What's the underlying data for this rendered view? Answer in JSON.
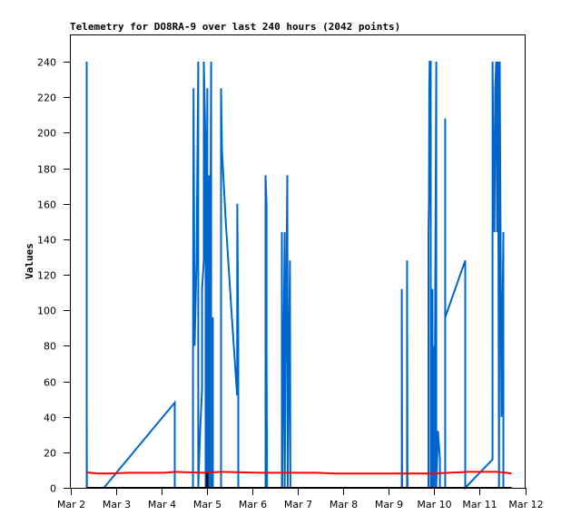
{
  "chart_data": {
    "type": "line",
    "title": "Telemetry for DO8RA-9 over last 240 hours (2042 points)",
    "xlabel": "",
    "ylabel": "Values",
    "x_unit": "hours since Mar 2 00:00",
    "xlim": [
      0,
      240
    ],
    "ylim": [
      0,
      256
    ],
    "yticks": [
      0,
      20,
      40,
      60,
      80,
      100,
      120,
      140,
      160,
      180,
      200,
      220,
      240
    ],
    "xticks": [
      {
        "h": 0,
        "label": "Mar 2"
      },
      {
        "h": 24,
        "label": "Mar 3"
      },
      {
        "h": 48,
        "label": "Mar 4"
      },
      {
        "h": 72,
        "label": "Mar 5"
      },
      {
        "h": 96,
        "label": "Mar 6"
      },
      {
        "h": 120,
        "label": "Mar 7"
      },
      {
        "h": 144,
        "label": "Mar 8"
      },
      {
        "h": 168,
        "label": "Mar 9"
      },
      {
        "h": 192,
        "label": "Mar 10"
      },
      {
        "h": 216,
        "label": "Mar 11"
      },
      {
        "h": 240,
        "label": "Mar 12"
      }
    ],
    "grid": false,
    "series": [
      {
        "name": "blue",
        "color": "#0066cc",
        "points": [
          [
            8.6,
            0
          ],
          [
            8.6,
            240
          ],
          [
            8.6,
            48
          ],
          [
            8.7,
            0
          ],
          [
            17.7,
            0
          ],
          [
            55.1,
            48
          ],
          [
            55.1,
            0
          ],
          [
            64.7,
            0
          ],
          [
            64.7,
            64
          ],
          [
            65,
            225
          ],
          [
            65.6,
            80
          ],
          [
            66.6,
            128
          ],
          [
            67.5,
            240
          ],
          [
            67.5,
            0
          ],
          [
            68.5,
            32
          ],
          [
            69.5,
            56
          ],
          [
            69.5,
            112
          ],
          [
            70.4,
            128
          ],
          [
            70.4,
            240
          ],
          [
            71.4,
            192
          ],
          [
            71.4,
            0
          ],
          [
            72.3,
            225
          ],
          [
            72.3,
            0
          ],
          [
            73.3,
            176
          ],
          [
            73.3,
            0
          ],
          [
            74.3,
            240
          ],
          [
            74.3,
            0
          ],
          [
            75.2,
            96
          ],
          [
            75.2,
            0
          ],
          [
            79.5,
            0
          ],
          [
            79.5,
            225
          ],
          [
            80,
            190
          ],
          [
            82,
            150
          ],
          [
            85,
            100
          ],
          [
            88,
            52
          ],
          [
            88.1,
            160
          ],
          [
            88.6,
            80
          ],
          [
            88.6,
            0
          ],
          [
            103,
            0
          ],
          [
            103,
            176
          ],
          [
            103.5,
            160
          ],
          [
            103.5,
            80
          ],
          [
            103.8,
            0
          ],
          [
            111.6,
            0
          ],
          [
            111.6,
            144
          ],
          [
            111.8,
            0
          ],
          [
            113.1,
            144
          ],
          [
            113.1,
            0
          ],
          [
            114.5,
            176
          ],
          [
            114.7,
            64
          ],
          [
            114.7,
            0
          ],
          [
            115.9,
            128
          ],
          [
            116.1,
            0
          ],
          [
            174.9,
            0
          ],
          [
            174.9,
            112
          ],
          [
            175.1,
            0
          ],
          [
            177.7,
            0
          ],
          [
            177.7,
            128
          ],
          [
            177.9,
            0
          ],
          [
            189,
            0
          ],
          [
            189,
            144
          ],
          [
            189.2,
            160
          ],
          [
            189.4,
            225
          ],
          [
            189.6,
            240
          ],
          [
            190.2,
            240
          ],
          [
            190.2,
            0
          ],
          [
            191.1,
            112
          ],
          [
            191.1,
            0
          ],
          [
            192.1,
            80
          ],
          [
            192.1,
            0
          ],
          [
            193.1,
            240
          ],
          [
            193.1,
            0
          ],
          [
            194,
            32
          ],
          [
            195,
            16
          ],
          [
            195,
            0
          ],
          [
            197.8,
            0
          ],
          [
            197.8,
            208
          ],
          [
            197.8,
            96
          ],
          [
            208.4,
            128
          ],
          [
            208.4,
            0
          ],
          [
            222.8,
            16
          ],
          [
            222.8,
            240
          ],
          [
            223.3,
            176
          ],
          [
            223.8,
            144
          ],
          [
            224.2,
            225
          ],
          [
            224.7,
            240
          ],
          [
            225.2,
            144
          ],
          [
            225.7,
            240
          ],
          [
            226.2,
            0
          ],
          [
            226.6,
            240
          ],
          [
            227.5,
            40
          ],
          [
            228.5,
            144
          ],
          [
            228.5,
            0
          ]
        ]
      },
      {
        "name": "red",
        "color": "#ff0000",
        "points": [
          [
            8.6,
            9
          ],
          [
            10,
            8.5
          ],
          [
            15,
            8
          ],
          [
            20,
            8
          ],
          [
            30,
            8.5
          ],
          [
            50,
            8.5
          ],
          [
            55,
            9
          ],
          [
            70,
            8.5
          ],
          [
            80,
            9
          ],
          [
            100,
            8.5
          ],
          [
            130,
            8.5
          ],
          [
            140,
            8
          ],
          [
            180,
            8
          ],
          [
            190,
            8
          ],
          [
            200,
            8.5
          ],
          [
            210,
            9
          ],
          [
            225,
            9
          ],
          [
            230,
            8.5
          ],
          [
            232.8,
            8
          ]
        ]
      },
      {
        "name": "black",
        "color": "#000000",
        "points": [
          [
            8.6,
            0
          ],
          [
            72,
            0
          ],
          [
            72,
            8
          ],
          [
            72.3,
            8
          ],
          [
            72.3,
            0
          ],
          [
            232.8,
            0
          ]
        ]
      }
    ]
  }
}
